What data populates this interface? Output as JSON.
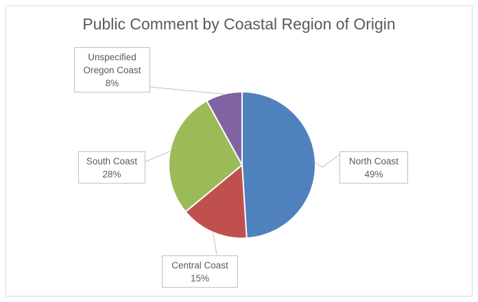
{
  "chart_data": {
    "type": "pie",
    "title": "Public Comment by Coastal Region of Origin",
    "slices": [
      {
        "label": "North Coast",
        "value": 49,
        "label_text": "49%",
        "color": "#4f81bd"
      },
      {
        "label": "Central Coast",
        "value": 15,
        "label_text": "15%",
        "color": "#c0504d"
      },
      {
        "label": "South Coast",
        "value": 28,
        "label_text": "28%",
        "color": "#9bbb59"
      },
      {
        "label": "Unspecified Oregon Coast",
        "label_lines": [
          "Unspecified",
          "Oregon Coast"
        ],
        "value": 8,
        "label_text": "8%",
        "color": "#8064a2"
      }
    ],
    "legend": "none",
    "start_angle": "12 o'clock, clockwise"
  }
}
